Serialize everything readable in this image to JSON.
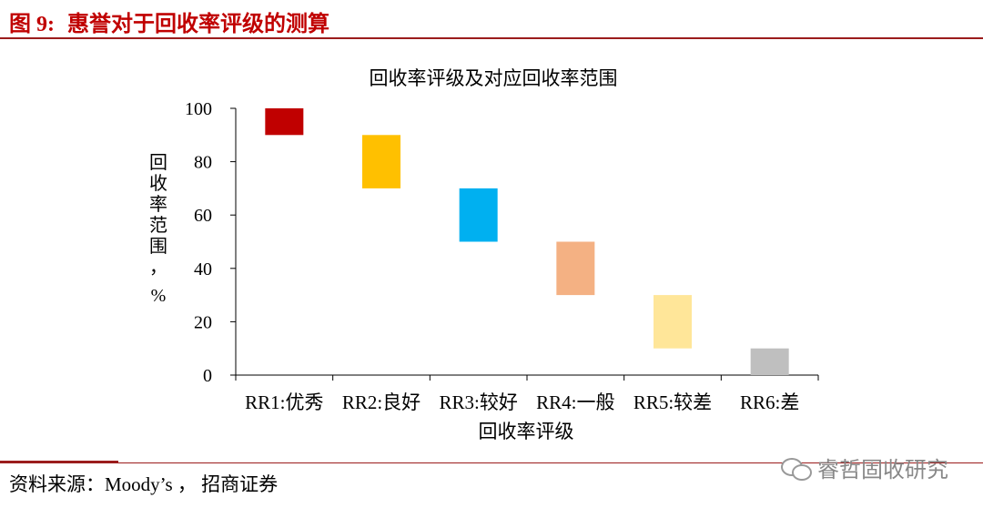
{
  "header": {
    "figure_label": "图",
    "figure_number": "9:",
    "figure_title": "惠誉对于回收率评级的测算"
  },
  "chart_data": {
    "type": "bar",
    "title": "回收率评级及对应回收率范围",
    "xlabel": "回收率评级",
    "ylabel": "回收率范围，%",
    "ylim": [
      0,
      100
    ],
    "yticks": [
      0,
      20,
      40,
      60,
      80,
      100
    ],
    "grid": false,
    "categories": [
      "RR1:优秀",
      "RR2:良好",
      "RR3:较好",
      "RR4:一般",
      "RR5:较差",
      "RR6:差"
    ],
    "ranges": [
      [
        90,
        100
      ],
      [
        70,
        90
      ],
      [
        50,
        70
      ],
      [
        30,
        50
      ],
      [
        10,
        30
      ],
      [
        0,
        10
      ]
    ],
    "colors": [
      "#c00000",
      "#ffc000",
      "#00b0f0",
      "#f4b183",
      "#ffe699",
      "#bfbfbf"
    ]
  },
  "footer": {
    "source": "资料来源：Moody’s ， 招商证券",
    "watermark": "睿哲固收研究"
  }
}
